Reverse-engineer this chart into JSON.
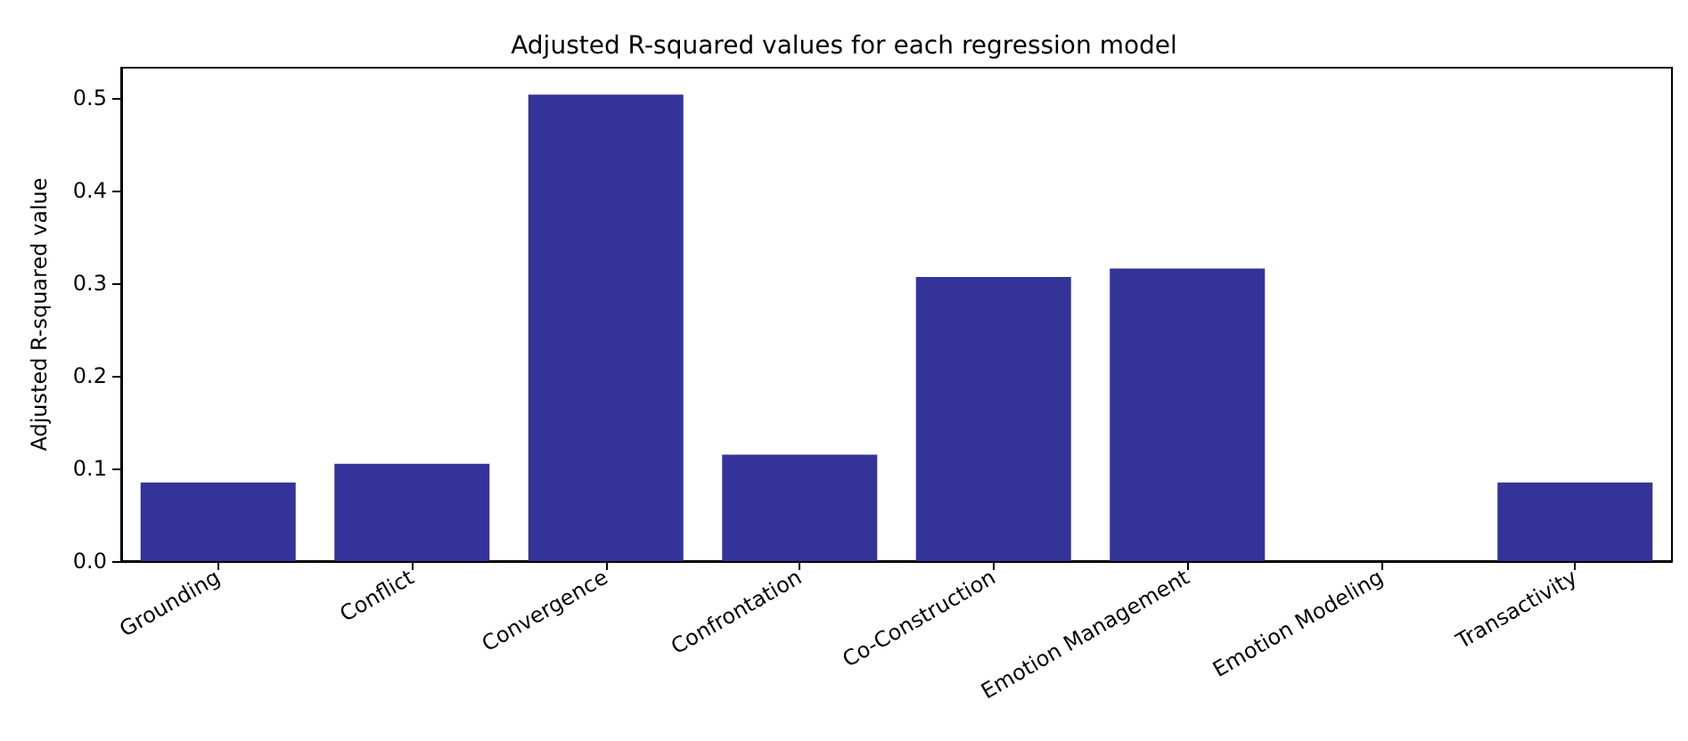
{
  "chart_data": {
    "type": "bar",
    "title": "Adjusted R-squared values for each regression model",
    "ylabel": "Adjusted R-squared value",
    "categories": [
      "Grounding",
      "Conflict",
      "Convergence",
      "Confrontation",
      "Co-Construction",
      "Emotion Management",
      "Emotion Modeling",
      "Transactivity"
    ],
    "values": [
      0.085,
      0.105,
      0.504,
      0.115,
      0.307,
      0.316,
      0,
      0.085
    ],
    "color": "#333399",
    "ylim": [
      0,
      0.533
    ],
    "yticks": [
      {
        "value": 0,
        "label": "0.0"
      },
      0.1,
      0.2,
      0.3,
      0.4,
      0.5
    ],
    "grid": false
  }
}
